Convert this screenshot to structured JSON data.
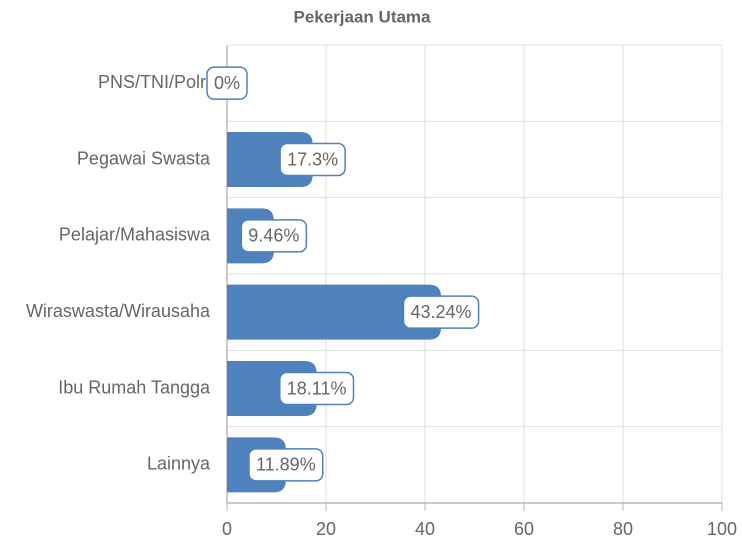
{
  "chart_data": {
    "type": "bar",
    "orientation": "horizontal",
    "title": "Pekerjaan Utama",
    "categories": [
      "PNS/TNI/Polri",
      "Pegawai Swasta",
      "Pelajar/Mahasiswa",
      "Wiraswasta/Wirausaha",
      "Ibu Rumah Tangga",
      "Lainnya"
    ],
    "values": [
      0,
      17.3,
      9.46,
      43.24,
      18.11,
      11.89
    ],
    "value_labels": [
      "0%",
      "17.3%",
      "9.46%",
      "43.24%",
      "18.11%",
      "11.89%"
    ],
    "color": "#4f81bd",
    "xlim": [
      0,
      100
    ],
    "xticks": [
      0,
      20,
      40,
      60,
      80,
      100
    ],
    "grid": true
  }
}
